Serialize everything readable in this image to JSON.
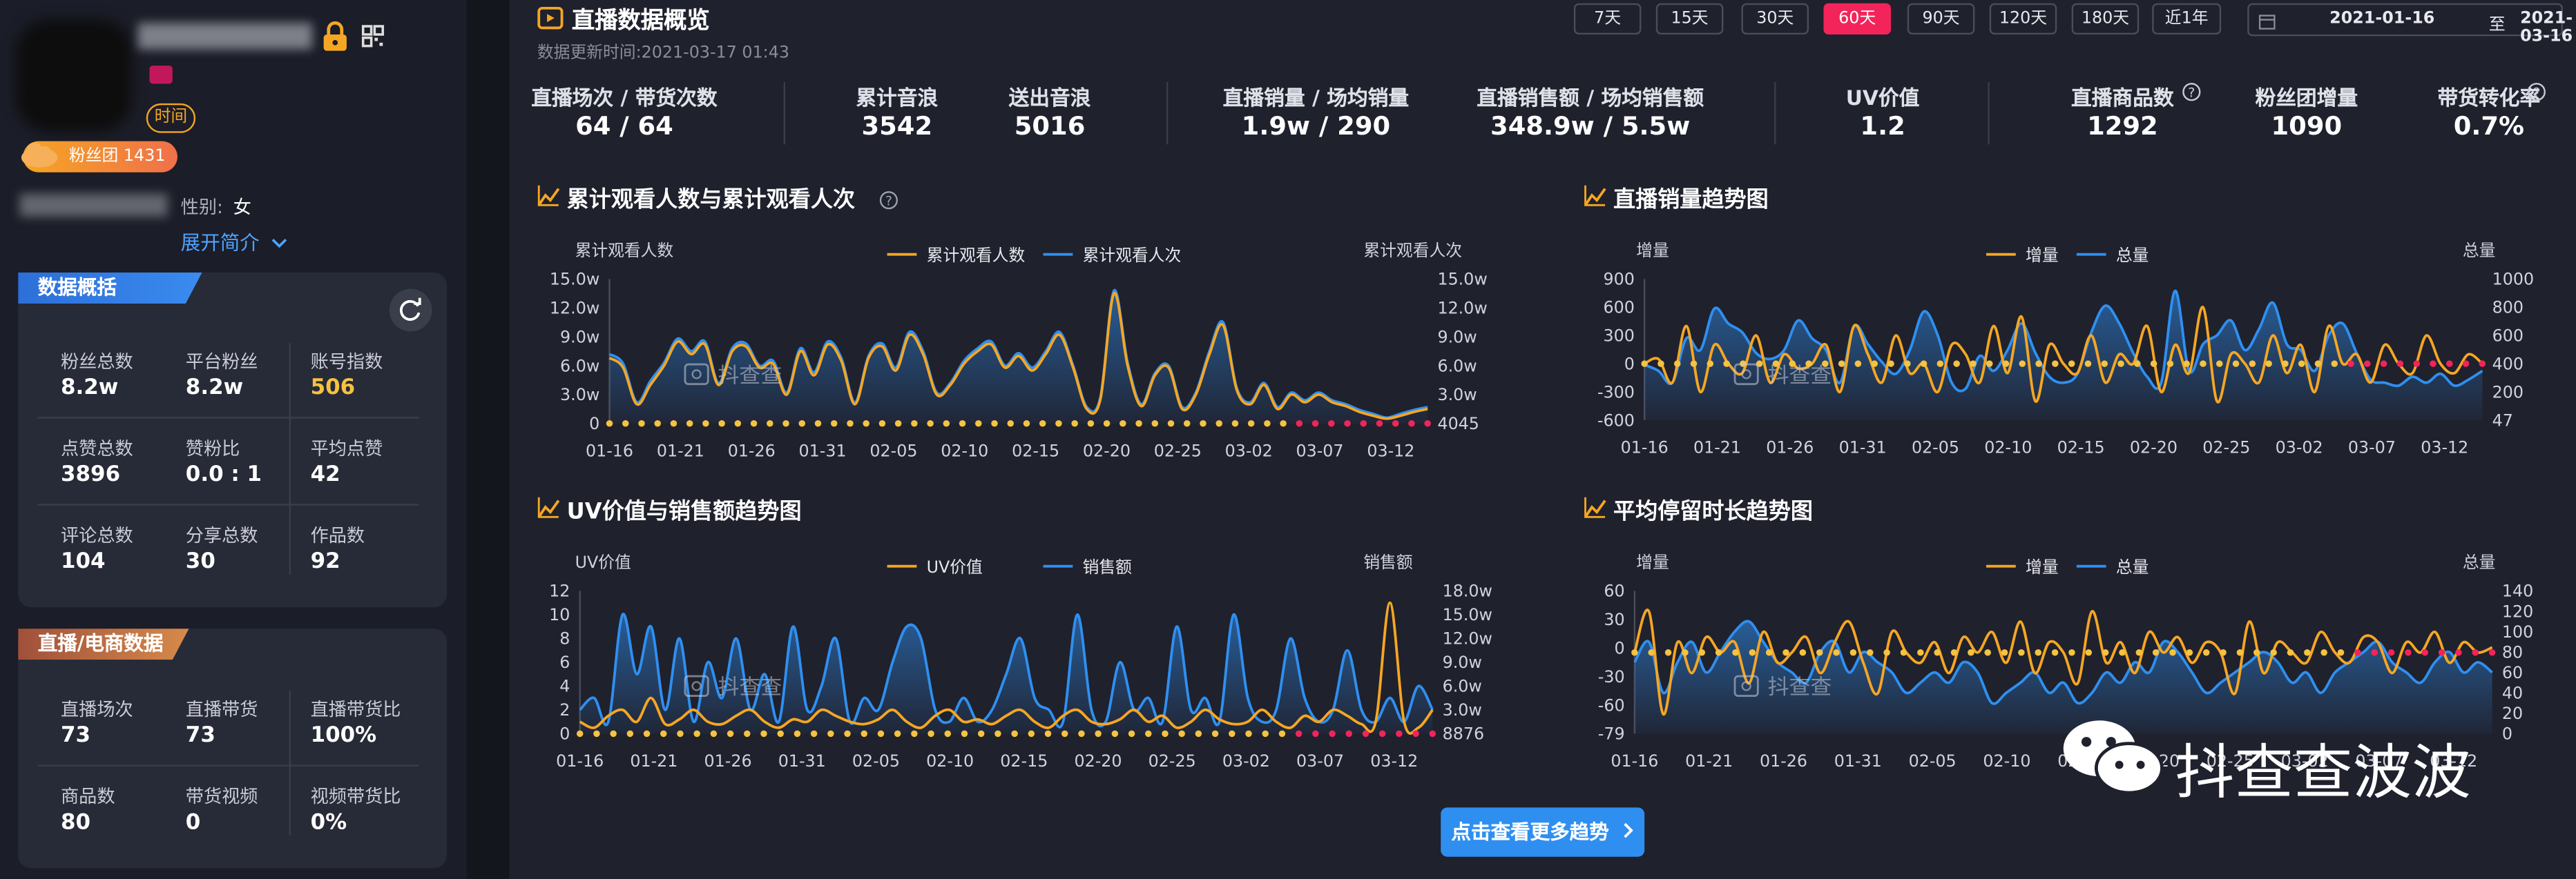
{
  "sidebar": {
    "category_tag": "时间",
    "fans_club_badge": "粉丝团 1431",
    "gender_label": "性别:",
    "gender_value": "女",
    "expand_link": "展开简介",
    "overview": {
      "title": "数据概括",
      "items": [
        {
          "label": "粉丝总数",
          "value": "8.2w"
        },
        {
          "label": "平台粉丝",
          "value": "8.2w"
        },
        {
          "label": "账号指数",
          "value": "506",
          "highlight": "#f5c242"
        },
        {
          "label": "点赞总数",
          "value": "3896"
        },
        {
          "label": "赞粉比",
          "value": "0.0 : 1"
        },
        {
          "label": "平均点赞",
          "value": "42"
        },
        {
          "label": "评论总数",
          "value": "104"
        },
        {
          "label": "分享总数",
          "value": "30"
        },
        {
          "label": "作品数",
          "value": "92"
        }
      ]
    },
    "ecommerce": {
      "title": "直播/电商数据",
      "items": [
        {
          "label": "直播场次",
          "value": "73"
        },
        {
          "label": "直播带货",
          "value": "73"
        },
        {
          "label": "直播带货比",
          "value": "100%"
        },
        {
          "label": "商品数",
          "value": "80"
        },
        {
          "label": "带货视频",
          "value": "0"
        },
        {
          "label": "视频带货比",
          "value": "0%"
        }
      ]
    }
  },
  "header": {
    "title": "直播数据概览",
    "updated": "数据更新时间:2021-03-17 01:43",
    "ranges": [
      "7天",
      "15天",
      "30天",
      "60天",
      "90天",
      "120天",
      "180天",
      "近1年"
    ],
    "active_range": "60天",
    "date_from": "2021-01-16",
    "date_sep": "至",
    "date_to": "2021-03-16"
  },
  "metrics": [
    {
      "label": "直播场次 / 带货次数",
      "value": "64 / 64"
    },
    {
      "label": "累计音浪",
      "value": "3542"
    },
    {
      "label": "送出音浪",
      "value": "5016"
    },
    {
      "label": "直播销量 / 场均销量",
      "value": "1.9w / 290"
    },
    {
      "label": "直播销售额 / 场均销售额",
      "value": "348.9w / 5.5w"
    },
    {
      "label": "UV价值",
      "value": "1.2"
    },
    {
      "label": "直播商品数",
      "value": "1292"
    },
    {
      "label": "粉丝团增量",
      "value": "1090"
    },
    {
      "label": "带货转化率",
      "value": "0.7%"
    }
  ],
  "more_button": "点击查看更多趋势",
  "watermark": "抖查查",
  "wechat_brand": "抖查查波波",
  "colors": {
    "orange": "#f5a623",
    "blue": "#2f8ff0",
    "pink": "#f3245a",
    "accent": "#f5a623"
  },
  "chart_data": [
    {
      "type": "line",
      "title": "累计观看人数与累计观看人次",
      "ylabel_left": "累计观看人数",
      "ylabel_right": "累计观看人次",
      "left_ticks": [
        "15.0w",
        "12.0w",
        "9.0w",
        "6.0w",
        "3.0w",
        "0"
      ],
      "right_ticks": [
        "15.0w",
        "12.0w",
        "9.0w",
        "6.0w",
        "3.0w",
        "4045"
      ],
      "x_ticks": [
        "01-16",
        "01-21",
        "01-26",
        "01-31",
        "02-05",
        "02-10",
        "02-15",
        "02-20",
        "02-25",
        "03-02",
        "03-07",
        "03-12"
      ],
      "ylim": [
        0,
        150000
      ],
      "series": [
        {
          "name": "累计观看人数",
          "color": "#f5a623",
          "values": [
            68000,
            58000,
            20000,
            40000,
            60000,
            85000,
            72000,
            82000,
            40000,
            75000,
            80000,
            58000,
            62000,
            30000,
            75000,
            50000,
            82000,
            65000,
            20000,
            68000,
            80000,
            55000,
            92000,
            72000,
            30000,
            40000,
            62000,
            75000,
            82000,
            58000,
            70000,
            55000,
            72000,
            92000,
            58000,
            15000,
            25000,
            135000,
            60000,
            18000,
            50000,
            58000,
            15000,
            30000,
            72000,
            102000,
            35000,
            20000,
            40000,
            15000,
            30000,
            22000,
            30000,
            22000,
            18000,
            12000,
            8000,
            5000,
            8000,
            12000,
            15000
          ]
        },
        {
          "name": "累计观看人次",
          "color": "#2f8ff0",
          "values": [
            72000,
            62000,
            22000,
            44000,
            63000,
            88000,
            75000,
            85000,
            42000,
            78000,
            83000,
            60000,
            65000,
            32000,
            78000,
            53000,
            85000,
            68000,
            22000,
            70000,
            83000,
            58000,
            95000,
            75000,
            32000,
            42000,
            65000,
            78000,
            85000,
            60000,
            73000,
            58000,
            75000,
            95000,
            60000,
            17000,
            27000,
            138000,
            63000,
            20000,
            52000,
            60000,
            17000,
            32000,
            75000,
            105000,
            37000,
            22000,
            42000,
            17000,
            32000,
            24000,
            32000,
            24000,
            20000,
            14000,
            10000,
            6000,
            10000,
            14000,
            17000
          ]
        }
      ]
    },
    {
      "type": "line",
      "title": "直播销量趋势图",
      "ylabel_left": "增量",
      "ylabel_right": "总量",
      "left_ticks": [
        "900",
        "600",
        "300",
        "0",
        "-300",
        "-600"
      ],
      "right_ticks": [
        "1000",
        "800",
        "600",
        "400",
        "200",
        "47"
      ],
      "x_ticks": [
        "01-16",
        "01-21",
        "01-26",
        "01-31",
        "02-05",
        "02-10",
        "02-15",
        "02-20",
        "02-25",
        "03-02",
        "03-07",
        "03-12"
      ],
      "ylim": [
        -600,
        900
      ],
      "series": [
        {
          "name": "增量",
          "color": "#f5a623",
          "values": [
            0,
            50,
            -200,
            400,
            -300,
            200,
            0,
            -100,
            300,
            -200,
            100,
            -50,
            0,
            200,
            -300,
            400,
            100,
            -200,
            300,
            -100,
            0,
            -300,
            200,
            100,
            -200,
            400,
            -100,
            500,
            -400,
            200,
            0,
            -100,
            300,
            -200,
            100,
            0,
            400,
            -300,
            200,
            -100,
            600,
            -400,
            100,
            0,
            -200,
            300,
            -100,
            200,
            -300,
            400,
            0,
            100,
            -200,
            200,
            0,
            -100,
            300,
            0,
            -100,
            100,
            0
          ]
        },
        {
          "name": "总量",
          "color": "#2f8ff0",
          "values": [
            420,
            380,
            300,
            600,
            520,
            800,
            700,
            640,
            500,
            460,
            520,
            720,
            600,
            520,
            300,
            680,
            560,
            440,
            360,
            520,
            780,
            620,
            300,
            260,
            480,
            380,
            520,
            700,
            500,
            340,
            300,
            360,
            640,
            820,
            700,
            500,
            340,
            300,
            920,
            380,
            560,
            620,
            720,
            520,
            660,
            840,
            560,
            520,
            380,
            620,
            700,
            500,
            320,
            300,
            280,
            340,
            300,
            360,
            280,
            320,
            380
          ]
        }
      ]
    },
    {
      "type": "line",
      "title": "UV价值与销售额趋势图",
      "ylabel_left": "UV价值",
      "ylabel_right": "销售额",
      "left_ticks": [
        "12",
        "10",
        "8",
        "6",
        "4",
        "2",
        "0"
      ],
      "right_ticks": [
        "18.0w",
        "15.0w",
        "12.0w",
        "9.0w",
        "6.0w",
        "3.0w",
        "8876"
      ],
      "x_ticks": [
        "01-16",
        "01-21",
        "01-26",
        "01-31",
        "02-05",
        "02-10",
        "02-15",
        "02-20",
        "02-25",
        "03-02",
        "03-07",
        "03-12"
      ],
      "ylim": [
        0,
        12
      ],
      "series": [
        {
          "name": "UV价值",
          "color": "#f5a623",
          "values": [
            1,
            0.5,
            1.5,
            2,
            1,
            3,
            0.8,
            1.2,
            2,
            1,
            0.8,
            1.5,
            2,
            1,
            0.5,
            1.2,
            1,
            2,
            1.5,
            1,
            0.8,
            1.2,
            2,
            1,
            0.5,
            1.5,
            2,
            1,
            1.2,
            0.8,
            1.5,
            2,
            1,
            0.5,
            1.5,
            2,
            1,
            0.8,
            1.2,
            2,
            1,
            1.5,
            0.5,
            1,
            2,
            1.2,
            0.8,
            1,
            2,
            1,
            0.5,
            1.5,
            1,
            2,
            1.5,
            0.8,
            1,
            11,
            1,
            0.5,
            2
          ]
        },
        {
          "name": "销售额",
          "color": "#2f8ff0",
          "values": [
            2,
            3,
            1,
            10,
            5,
            9,
            2,
            8,
            1,
            6,
            3,
            8,
            2,
            5,
            1,
            9,
            2,
            4,
            8,
            1,
            3,
            2,
            6,
            9,
            8,
            2,
            1,
            3,
            1,
            2,
            5,
            8,
            3,
            2,
            1,
            10,
            2,
            1,
            6,
            2,
            3,
            1,
            9,
            2,
            3,
            1,
            10,
            3,
            1,
            2,
            8,
            3,
            1,
            2,
            7,
            2,
            1,
            3,
            1,
            4,
            2
          ]
        }
      ]
    },
    {
      "type": "line",
      "title": "平均停留时长趋势图",
      "ylabel_left": "增量",
      "ylabel_right": "总量",
      "left_ticks": [
        "60",
        "30",
        "0",
        "-30",
        "-60",
        "-79"
      ],
      "right_ticks": [
        "140",
        "120",
        "100",
        "80",
        "60",
        "40",
        "20",
        "0"
      ],
      "x_ticks": [
        "01-16",
        "01-21",
        "01-26",
        "01-31",
        "02-05",
        "02-10",
        "02-15",
        "02-20",
        "02-25",
        "03-02",
        "03-07",
        "03-12"
      ],
      "ylim": [
        -79,
        60
      ],
      "series": [
        {
          "name": "增量",
          "color": "#f5a623",
          "values": [
            0,
            40,
            -60,
            10,
            -20,
            15,
            0,
            10,
            -30,
            20,
            -10,
            0,
            15,
            -20,
            10,
            30,
            -10,
            -40,
            20,
            0,
            -10,
            10,
            -20,
            15,
            0,
            20,
            -10,
            30,
            -20,
            10,
            0,
            -30,
            40,
            -10,
            10,
            -20,
            20,
            0,
            15,
            -10,
            10,
            0,
            -40,
            30,
            -20,
            10,
            0,
            -10,
            20,
            0,
            -10,
            15,
            10,
            -20,
            10,
            0,
            20,
            -10,
            10,
            0,
            5
          ]
        },
        {
          "name": "总量",
          "color": "#2f8ff0",
          "values": [
            70,
            90,
            40,
            70,
            90,
            60,
            80,
            100,
            110,
            90,
            70,
            60,
            50,
            80,
            90,
            60,
            80,
            70,
            60,
            40,
            50,
            60,
            50,
            70,
            60,
            30,
            40,
            50,
            60,
            40,
            50,
            30,
            40,
            60,
            50,
            70,
            60,
            90,
            80,
            60,
            40,
            50,
            60,
            70,
            80,
            70,
            50,
            60,
            40,
            60,
            70,
            80,
            90,
            70,
            60,
            50,
            70,
            80,
            60,
            70,
            60
          ]
        }
      ]
    }
  ]
}
